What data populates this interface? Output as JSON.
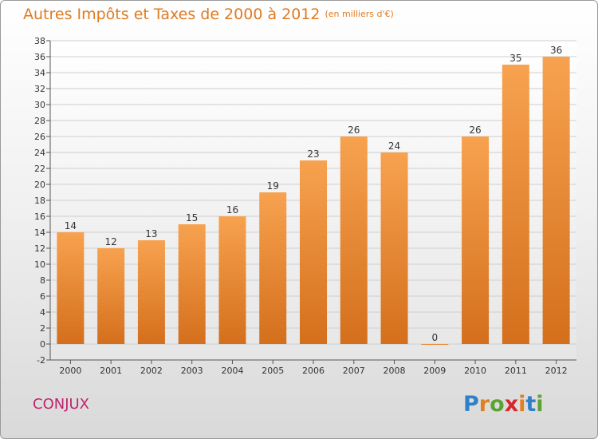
{
  "title": "Autres Impôts et Taxes de 2000 à 2012",
  "unit": "(en milliers d'€)",
  "commune": "CONJUX",
  "logo": {
    "text": "Proxiti",
    "letters": [
      "P",
      "r",
      "o",
      "x",
      "i",
      "t",
      "i"
    ],
    "colors": [
      "#2f80c7",
      "#e0811f",
      "#5aa431",
      "#d8262d",
      "#e0811f",
      "#2f80c7",
      "#5aa431"
    ]
  },
  "colors": {
    "bar": "#f0963f",
    "title": "#e07b21",
    "commune": "#c0246e"
  },
  "chart_data": {
    "type": "bar",
    "categories": [
      "2000",
      "2001",
      "2002",
      "2003",
      "2004",
      "2005",
      "2006",
      "2007",
      "2008",
      "2009",
      "2010",
      "2011",
      "2012"
    ],
    "values": [
      14,
      12,
      13,
      15,
      16,
      19,
      23,
      26,
      24,
      0,
      26,
      35,
      36
    ],
    "ylim": [
      -2,
      38
    ],
    "yticks": [
      -2,
      0,
      2,
      4,
      6,
      8,
      10,
      12,
      14,
      16,
      18,
      20,
      22,
      24,
      26,
      28,
      30,
      32,
      34,
      36,
      38
    ],
    "grid": true,
    "title": "Autres Impôts et Taxes de 2000 à 2012",
    "ylabel": "",
    "xlabel": ""
  }
}
